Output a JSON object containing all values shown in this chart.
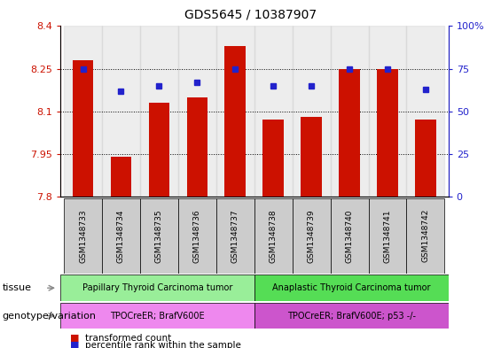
{
  "title": "GDS5645 / 10387907",
  "samples": [
    "GSM1348733",
    "GSM1348734",
    "GSM1348735",
    "GSM1348736",
    "GSM1348737",
    "GSM1348738",
    "GSM1348739",
    "GSM1348740",
    "GSM1348741",
    "GSM1348742"
  ],
  "transformed_counts": [
    8.28,
    7.94,
    8.13,
    8.15,
    8.33,
    8.07,
    8.08,
    8.25,
    8.25,
    8.07
  ],
  "percentile_ranks": [
    75,
    62,
    65,
    67,
    75,
    65,
    65,
    75,
    75,
    63
  ],
  "ylim_left": [
    7.8,
    8.4
  ],
  "ylim_right": [
    0,
    100
  ],
  "yticks_left": [
    7.8,
    7.95,
    8.1,
    8.25,
    8.4
  ],
  "yticks_right": [
    0,
    25,
    50,
    75,
    100
  ],
  "bar_color": "#cc1100",
  "dot_color": "#2222cc",
  "tissue_groups": [
    {
      "label": "Papillary Thyroid Carcinoma tumor",
      "start": 0,
      "end": 5,
      "color": "#99ee99"
    },
    {
      "label": "Anaplastic Thyroid Carcinoma tumor",
      "start": 5,
      "end": 10,
      "color": "#55dd55"
    }
  ],
  "genotype_groups": [
    {
      "label": "TPOCreER; BrafV600E",
      "start": 0,
      "end": 5,
      "color": "#ee88ee"
    },
    {
      "label": "TPOCreER; BrafV600E; p53 -/-",
      "start": 5,
      "end": 10,
      "color": "#cc55cc"
    }
  ],
  "legend_tc": "transformed count",
  "legend_pr": "percentile rank within the sample",
  "tissue_label": "tissue",
  "genotype_label": "genotype/variation",
  "bar_bottom": 7.8,
  "col_bg_color": "#cccccc",
  "bg_alpha": 0.35
}
